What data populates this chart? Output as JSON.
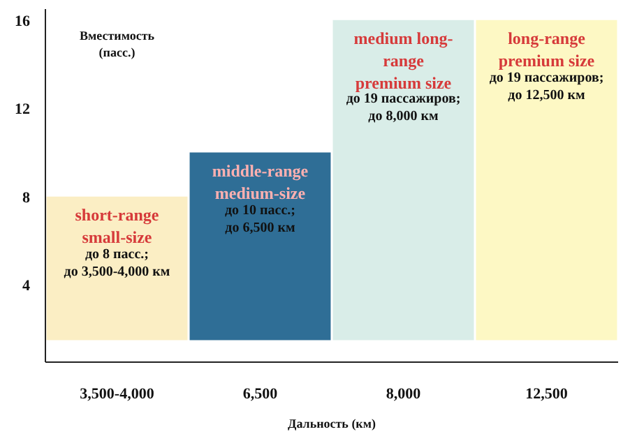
{
  "chart_data": {
    "type": "bar",
    "ylabel": "Вместимость\n(пасс.)",
    "xlabel": "Дальность (км)",
    "categories": [
      "3,500-4,000",
      "6,500",
      "8,000",
      "12,500"
    ],
    "base": [
      1.5,
      1.5,
      1.5,
      1.5
    ],
    "values": [
      6.5,
      8.5,
      14.5,
      14.5
    ],
    "colors": [
      "#fbeec4",
      "#2f6e96",
      "#d9ede8",
      "#fdf8c4"
    ],
    "ylim": [
      0.5,
      16.5
    ],
    "yticks": [
      4,
      8,
      12,
      16
    ],
    "grid": false,
    "annotations": [
      "short-range\nsmall-size",
      "до 8 пасс.;\nдо 3,500-4,000 км",
      "middle-range\nmedium-size",
      "до 10 пасс.;\nдо 6,500 км",
      "medium long-\nrange\npremium size",
      "до 19 пассажиров;\nдо 8,000 км",
      "long-range\npremium size",
      "до 19 пассажиров;\nдо 12,500 км"
    ]
  }
}
